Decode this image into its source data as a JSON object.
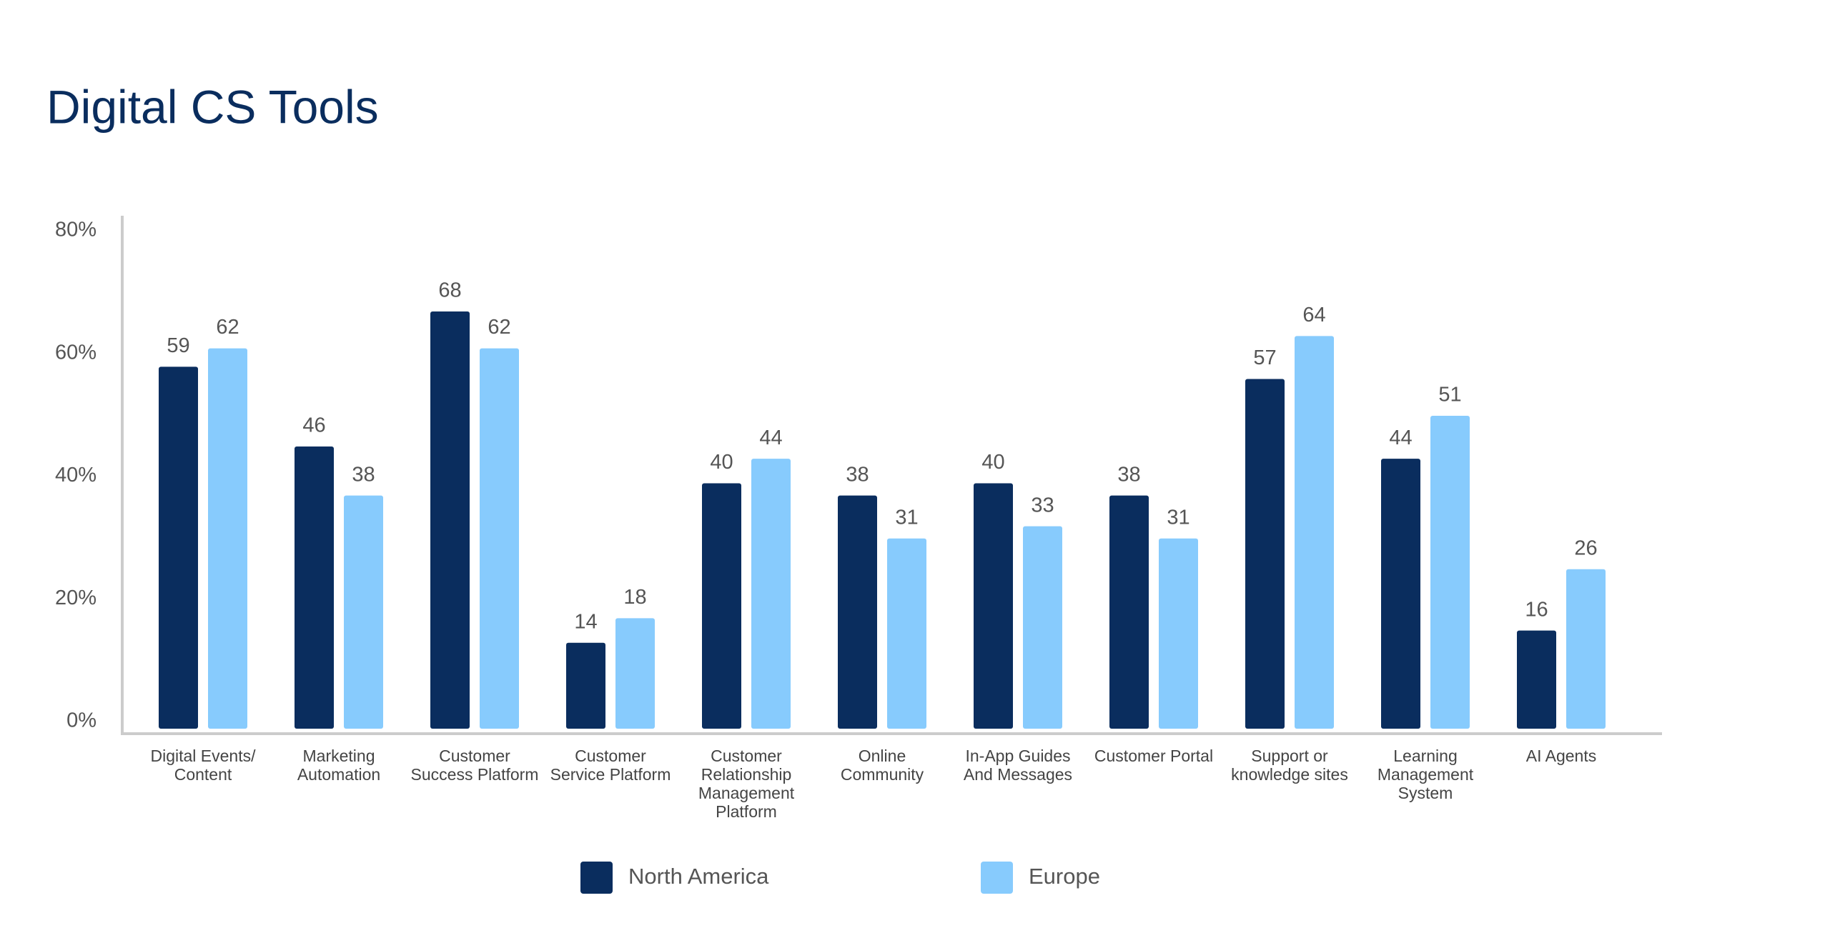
{
  "chart_data": {
    "type": "bar",
    "title": "Digital CS Tools",
    "categories": [
      "Digital Events/ Content",
      "Marketing Automation",
      "Customer Success Platform",
      "Customer Service Platform",
      "Customer Relationship Management Platform",
      "Online Community",
      "In-App Guides And Messages",
      "Customer Portal",
      "Support or knowledge sites",
      "Learning Management System",
      "AI Agents"
    ],
    "series": [
      {
        "name": "North America",
        "color": "#0a2d5e",
        "values": [
          59,
          46,
          68,
          14,
          40,
          38,
          40,
          38,
          57,
          44,
          16
        ]
      },
      {
        "name": "Europe",
        "color": "#87cbfd",
        "values": [
          62,
          38,
          62,
          18,
          44,
          31,
          33,
          31,
          64,
          51,
          26
        ]
      }
    ],
    "ylim": [
      0,
      80
    ],
    "yticks": [
      {
        "value": 0,
        "label": "0%"
      },
      {
        "value": 20,
        "label": "20%"
      },
      {
        "value": 40,
        "label": "40%"
      },
      {
        "value": 60,
        "label": "60%"
      },
      {
        "value": 80,
        "label": "80%"
      }
    ],
    "grid": false,
    "legend": "bottom"
  }
}
